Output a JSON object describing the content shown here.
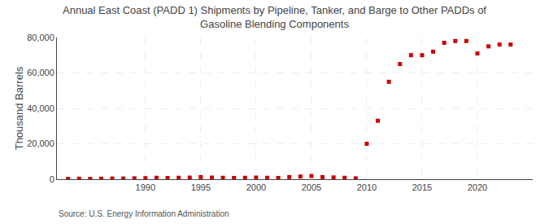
{
  "chart_data": {
    "type": "scatter",
    "title": "Annual East Coast (PADD 1) Shipments by Pipeline, Tanker, and Barge to Other PADDs of\nGasoline Blending Components",
    "ylabel": "Thousand Barrels",
    "annotations": [
      "Source: U.S. Energy Information Administration"
    ],
    "color": "#cc0000",
    "marker": "square",
    "grid": true,
    "x": [
      1983,
      1984,
      1985,
      1986,
      1987,
      1988,
      1989,
      1990,
      1991,
      1992,
      1993,
      1994,
      1995,
      1996,
      1997,
      1998,
      1999,
      2000,
      2001,
      2002,
      2003,
      2004,
      2005,
      2006,
      2007,
      2008,
      2009,
      2010,
      2011,
      2012,
      2013,
      2014,
      2015,
      2016,
      2017,
      2018,
      2019,
      2020,
      2021,
      2022,
      2023
    ],
    "values": [
      200,
      300,
      200,
      300,
      400,
      400,
      500,
      600,
      800,
      700,
      800,
      900,
      1200,
      900,
      800,
      700,
      800,
      900,
      800,
      700,
      1200,
      1500,
      1800,
      1200,
      1000,
      800,
      500,
      20000,
      33000,
      55000,
      65000,
      70000,
      70000,
      72000,
      77000,
      78000,
      78000,
      71000,
      75000,
      76000,
      76000
    ],
    "xlim": [
      1982,
      2025
    ],
    "xticks": [
      1990,
      1995,
      2000,
      2005,
      2010,
      2015,
      2020
    ],
    "ylim": [
      0,
      80000
    ],
    "yticks": [
      0,
      {
        "value": 20000,
        "label": "20,000"
      },
      {
        "value": 40000,
        "label": "40,000"
      },
      {
        "value": 60000,
        "label": "60,000"
      },
      {
        "value": 80000,
        "label": "80,000"
      }
    ]
  }
}
